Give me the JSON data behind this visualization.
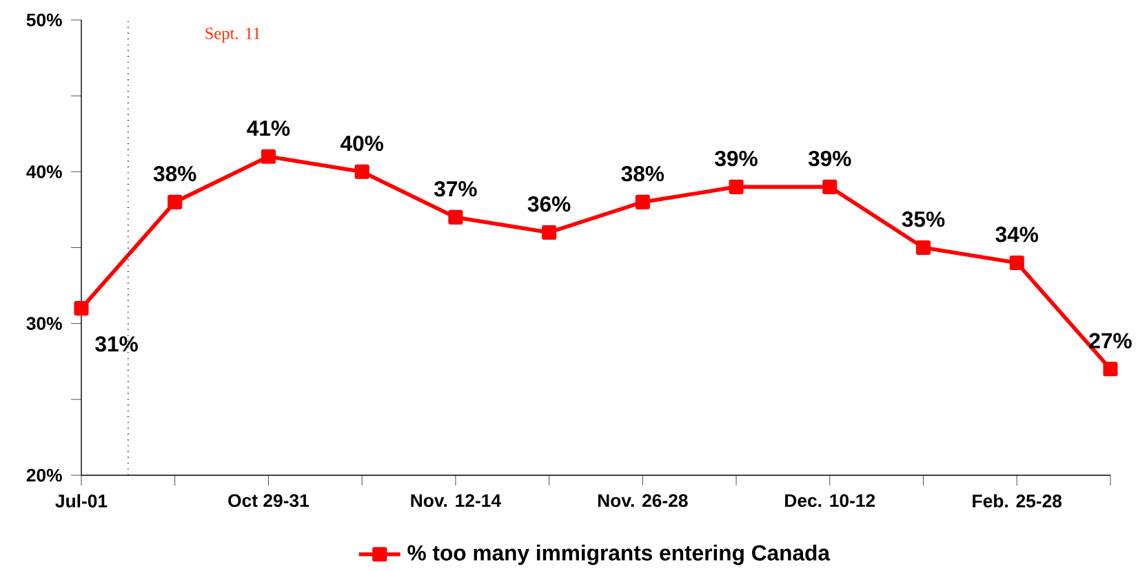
{
  "chart_data": {
    "type": "line",
    "categories": [
      "Jul-01",
      null,
      "Oct 29-31",
      null,
      "Nov. 12-14",
      null,
      "Nov. 26-28",
      null,
      "Dec. 10-12",
      null,
      "Feb. 25-28",
      null
    ],
    "series": [
      {
        "name": "% too many immigrants entering Canada",
        "color": "#ff0000",
        "values": [
          31,
          38,
          41,
          40,
          37,
          36,
          38,
          39,
          39,
          35,
          34,
          27
        ],
        "value_labels": [
          "31%",
          "38%",
          "41%",
          "40%",
          "37%",
          "36%",
          "38%",
          "39%",
          "39%",
          "35%",
          "34%",
          "27%"
        ]
      }
    ],
    "ylim": [
      20,
      50
    ],
    "yticks": [
      {
        "value": 20,
        "label": "20%"
      },
      {
        "value": 25,
        "label": null
      },
      {
        "value": 30,
        "label": "30%"
      },
      {
        "value": 35,
        "label": null
      },
      {
        "value": 40,
        "label": "40%"
      },
      {
        "value": 45,
        "label": null
      },
      {
        "value": 50,
        "label": "50%"
      }
    ],
    "annotations": [
      "Sept. 11"
    ],
    "marker": "square",
    "line_style": "solid",
    "legend": "bottom",
    "grid": false
  }
}
